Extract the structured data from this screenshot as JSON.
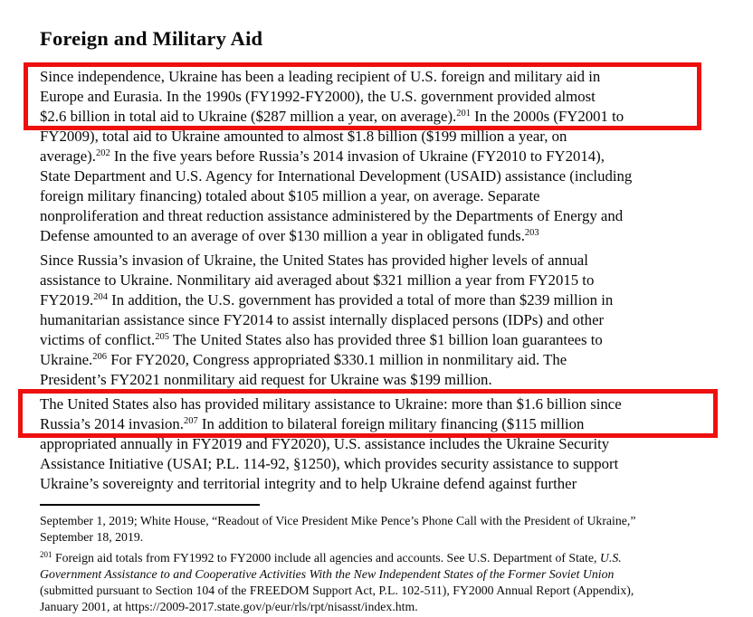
{
  "document": {
    "title": "Foreign and Military Aid",
    "paragraphs": [
      {
        "lines": [
          [
            {
              "text": "Since independence, Ukraine has been a leading recipient of U.S. foreign and military aid in"
            }
          ],
          [
            {
              "text": "Europe and Eurasia. In the 1990s (FY1992-FY2000), the U.S. government provided almost"
            }
          ],
          [
            {
              "text": "$2.6 billion in total aid to Ukraine ($287 million a year, on average)."
            },
            {
              "text": "201",
              "sup": true
            },
            {
              "text": " In the 2000s (FY2001 to"
            }
          ],
          [
            {
              "text": "FY2009), total aid to Ukraine amounted to almost $1.8 billion ($199 million a year, on"
            }
          ],
          [
            {
              "text": "average)."
            },
            {
              "text": "202",
              "sup": true
            },
            {
              "text": " In the five years before Russia’s 2014 invasion of Ukraine (FY2010 to FY2014),"
            }
          ],
          [
            {
              "text": "State Department and U.S. Agency for International Development (USAID) assistance (including"
            }
          ],
          [
            {
              "text": "foreign military financing) totaled about $105 million a year, on average. Separate"
            }
          ],
          [
            {
              "text": "nonproliferation and threat reduction assistance administered by the Departments of Energy and"
            }
          ],
          [
            {
              "text": "Defense amounted to an average of over $130 million a year in obligated funds."
            },
            {
              "text": "203",
              "sup": true
            }
          ]
        ]
      },
      {
        "lines": [
          [
            {
              "text": "Since Russia’s invasion of Ukraine, the United States has provided higher levels of annual"
            }
          ],
          [
            {
              "text": "assistance to Ukraine. Nonmilitary aid averaged about $321 million a year from FY2015 to"
            }
          ],
          [
            {
              "text": "FY2019."
            },
            {
              "text": "204",
              "sup": true
            },
            {
              "text": " In addition, the U.S. government has provided a total of more than $239 million in"
            }
          ],
          [
            {
              "text": "humanitarian assistance since FY2014 to assist internally displaced persons (IDPs) and other"
            }
          ],
          [
            {
              "text": "victims of conflict."
            },
            {
              "text": "205",
              "sup": true
            },
            {
              "text": " The United States also has provided three $1 billion loan guarantees to"
            }
          ],
          [
            {
              "text": "Ukraine."
            },
            {
              "text": "206",
              "sup": true
            },
            {
              "text": " For FY2020, Congress appropriated $330.1 million in nonmilitary aid. The"
            }
          ],
          [
            {
              "text": "President’s FY2021 nonmilitary aid request for Ukraine was $199 million."
            }
          ]
        ]
      },
      {
        "lines": [
          [
            {
              "text": "The United States also has provided military assistance to Ukraine: more than $1.6 billion since"
            }
          ],
          [
            {
              "text": "Russia’s 2014 invasion."
            },
            {
              "text": "207",
              "sup": true
            },
            {
              "text": " In addition to bilateral foreign military financing ($115 million"
            }
          ],
          [
            {
              "text": "appropriated annually in FY2019 and FY2020), U.S. assistance includes the Ukraine Security"
            }
          ],
          [
            {
              "text": "Assistance Initiative (USAI; P.L. 114-92, §1250), which provides security assistance to support"
            }
          ],
          [
            {
              "text": "Ukraine’s sovereignty and territorial integrity and to help Ukraine defend against further"
            }
          ]
        ]
      }
    ],
    "footnotes": [
      {
        "lines": [
          [
            {
              "text": "September 1, 2019; White House, “Readout of Vice President Mike Pence’s Phone Call with the President of Ukraine,”"
            }
          ],
          [
            {
              "text": "September 18, 2019."
            }
          ]
        ]
      },
      {
        "lines": [
          [
            {
              "text": "201",
              "sup": true
            },
            {
              "text": " Foreign aid totals from FY1992 to FY2000 include all agencies and accounts. See U.S. Department of State, "
            },
            {
              "text": "U.S.",
              "italic": true
            }
          ],
          [
            {
              "text": "Government Assistance to and Cooperative Activities With the New Independent States of the Former Soviet Union",
              "italic": true
            }
          ],
          [
            {
              "text": "(submitted pursuant to Section 104 of the FREEDOM Support Act, P.L. 102-511), FY2000 Annual Report (Appendix),"
            }
          ],
          [
            {
              "text": "January 2001, at https://2009-2017.state.gov/p/eur/rls/rpt/nisasst/index.htm."
            }
          ]
        ]
      }
    ]
  },
  "annotations": {
    "highlight_color": "#ee0f0f",
    "highlight_count": 2
  }
}
